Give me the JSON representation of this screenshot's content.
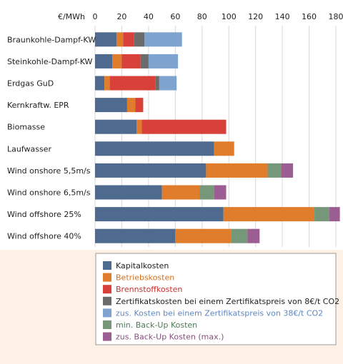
{
  "chart_data": {
    "type": "bar",
    "orientation": "horizontal",
    "stacked": true,
    "unit_label": "€/MWh",
    "xlim": [
      0,
      180
    ],
    "x_ticks": [
      0,
      20,
      40,
      60,
      80,
      100,
      120,
      140,
      160,
      180
    ],
    "grid": true,
    "legend_position": "bottom",
    "categories": [
      "Braunkohle-Dampf-KW",
      "Steinkohle-Dampf-KW",
      "Erdgas GuD",
      "Kernkraftw. EPR",
      "Biomasse",
      "Laufwasser",
      "Wind onshore 5,5m/s",
      "Wind onshore 6,5m/s",
      "Wind offshore 25%",
      "Wind offshore 40%"
    ],
    "series": [
      {
        "name": "Kapitalkosten",
        "color": "#4f6a8f",
        "values": [
          16,
          13,
          7,
          24,
          31,
          89,
          83,
          50,
          96,
          60
        ]
      },
      {
        "name": "Betriebskosten",
        "color": "#e07d2c",
        "values": [
          5,
          7,
          4,
          6,
          4,
          15,
          46,
          28,
          68,
          42
        ]
      },
      {
        "name": "Brennstoffkosten",
        "color": "#d8403a",
        "values": [
          8,
          14,
          34,
          6,
          63,
          0,
          0,
          0,
          0,
          0
        ]
      },
      {
        "name": "Zertifikatskosten bei einem Zertifikatspreis von 8€/t CO2",
        "color": "#6b6b6b",
        "values": [
          8,
          6,
          3,
          0,
          0,
          0,
          0,
          0,
          0,
          0
        ]
      },
      {
        "name": "zus. Kosten bei einem Zertifikatspreis von 38€/t CO2",
        "color": "#7ea3cf",
        "values": [
          28,
          22,
          13,
          0,
          0,
          0,
          0,
          0,
          0,
          0
        ]
      },
      {
        "name": "min. Back-Up Kosten",
        "color": "#76977a",
        "values": [
          0,
          0,
          0,
          0,
          0,
          0,
          10,
          11,
          11,
          12
        ]
      },
      {
        "name": "zus. Back-Up Kosten (max.)",
        "color": "#9c5d92",
        "values": [
          0,
          0,
          0,
          0,
          0,
          0,
          9,
          9,
          8,
          9
        ]
      }
    ]
  }
}
